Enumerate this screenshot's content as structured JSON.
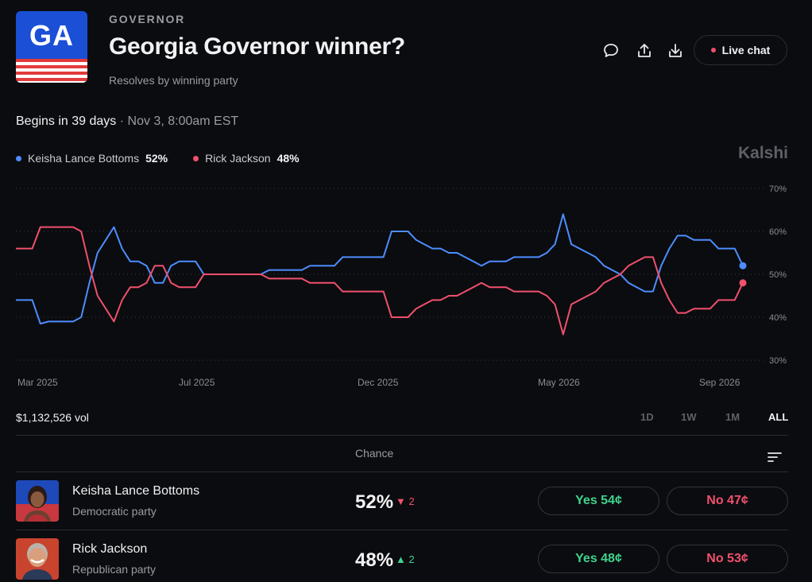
{
  "header": {
    "logo_text": "GA",
    "category": "GOVERNOR",
    "title": "Georgia Governor winner?",
    "subtitle": "Resolves by winning party",
    "live_chat_label": "Live chat",
    "icons": [
      "comment-icon",
      "share-icon",
      "download-icon"
    ]
  },
  "schedule": {
    "begins": "Begins in 39 days",
    "date": " · Nov 3, 8:00am EST"
  },
  "legend": [
    {
      "name": "Keisha Lance Bottoms",
      "pct": "52%",
      "color": "#4c8dff"
    },
    {
      "name": "Rick Jackson",
      "pct": "48%",
      "color": "#f0506e"
    }
  ],
  "brand": "Kalshi",
  "chart_data": {
    "type": "line",
    "x_tick_labels": [
      "Mar 2025",
      "Jul 2025",
      "Dec 2025",
      "May 2026",
      "Sep 2026"
    ],
    "y_tick_labels": [
      "70%",
      "60%",
      "50%",
      "40%",
      "30%"
    ],
    "y_ticks": [
      70,
      60,
      50,
      40,
      30
    ],
    "ylim": [
      30,
      70
    ],
    "grid": true,
    "legend_position": "top-left",
    "series": [
      {
        "name": "Keisha Lance Bottoms",
        "color": "#4c8dff",
        "values": [
          44,
          44,
          44,
          38.5,
          39,
          39,
          39,
          39,
          40,
          48,
          55,
          58,
          61,
          56,
          53,
          53,
          52,
          48,
          48,
          52,
          53,
          53,
          53,
          50,
          50,
          50,
          50,
          50,
          50,
          50,
          50,
          51,
          51,
          51,
          51,
          51,
          52,
          52,
          52,
          52,
          54,
          54,
          54,
          54,
          54,
          54,
          60,
          60,
          60,
          58,
          57,
          56,
          56,
          55,
          55,
          54,
          53,
          52,
          53,
          53,
          53,
          54,
          54,
          54,
          54,
          55,
          57,
          64,
          57,
          56,
          55,
          54,
          52,
          51,
          50,
          48,
          47,
          46,
          46,
          52,
          56,
          59,
          59,
          58,
          58,
          58,
          56,
          56,
          56,
          52
        ]
      },
      {
        "name": "Rick Jackson",
        "color": "#f0506e",
        "values": [
          56,
          56,
          56,
          61,
          61,
          61,
          61,
          61,
          60,
          52,
          45,
          42,
          39,
          44,
          47,
          47,
          48,
          52,
          52,
          48,
          47,
          47,
          47,
          50,
          50,
          50,
          50,
          50,
          50,
          50,
          50,
          49,
          49,
          49,
          49,
          49,
          48,
          48,
          48,
          48,
          46,
          46,
          46,
          46,
          46,
          46,
          40,
          40,
          40,
          42,
          43,
          44,
          44,
          45,
          45,
          46,
          47,
          48,
          47,
          47,
          47,
          46,
          46,
          46,
          46,
          45,
          43,
          36,
          43,
          44,
          45,
          46,
          48,
          49,
          50,
          52,
          53,
          54,
          54,
          48,
          44,
          41,
          41,
          42,
          42,
          42,
          44,
          44,
          44,
          48
        ]
      }
    ],
    "end_values": {
      "Keisha Lance Bottoms": 52,
      "Rick Jackson": 48
    }
  },
  "volume": "$1,132,526 vol",
  "ranges": [
    {
      "label": "1D",
      "active": false
    },
    {
      "label": "1W",
      "active": false
    },
    {
      "label": "1M",
      "active": false
    },
    {
      "label": "ALL",
      "active": true
    }
  ],
  "table": {
    "chance_header": "Chance",
    "rows": [
      {
        "name": "Keisha Lance Bottoms",
        "party": "Democratic party",
        "chance": "52%",
        "delta_arrow": "▼",
        "delta": "2",
        "delta_color": "#f0506e",
        "yes_label": "Yes 54¢",
        "no_label": "No 47¢"
      },
      {
        "name": "Rick Jackson",
        "party": "Republican party",
        "chance": "48%",
        "delta_arrow": "▲",
        "delta": "2",
        "delta_color": "#3fd38d",
        "yes_label": "Yes 48¢",
        "no_label": "No 53¢"
      }
    ]
  }
}
